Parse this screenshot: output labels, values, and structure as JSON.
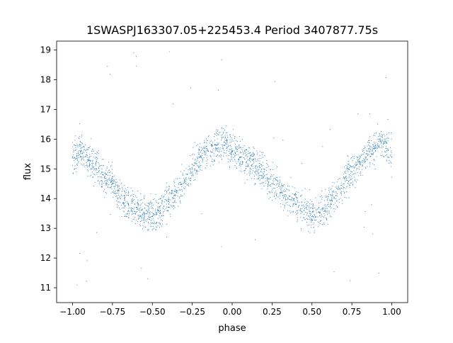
{
  "chart_data": {
    "type": "scatter",
    "title": "1SWASPJ163307.05+225453.4 Period 3407877.75s",
    "xlabel": "phase",
    "ylabel": "flux",
    "xlim": [
      -1.1,
      1.1
    ],
    "ylim": [
      10.5,
      19.3
    ],
    "xticks": [
      -1.0,
      -0.75,
      -0.5,
      -0.25,
      0.0,
      0.25,
      0.5,
      0.75,
      1.0
    ],
    "xtick_labels": [
      "−1.00",
      "−0.75",
      "−0.50",
      "−0.25",
      "0.00",
      "0.25",
      "0.50",
      "0.75",
      "1.00"
    ],
    "yticks": [
      11,
      12,
      13,
      14,
      15,
      16,
      17,
      18,
      19
    ],
    "ytick_labels": [
      "11",
      "12",
      "13",
      "14",
      "15",
      "16",
      "17",
      "18",
      "19"
    ],
    "grid": false,
    "legend": "none",
    "marker_color": "#1f77b4",
    "series": [
      {
        "x": [
          -1.0,
          -0.95,
          -0.9,
          -0.85,
          -0.8,
          -0.75,
          -0.7,
          -0.65,
          -0.6,
          -0.55,
          -0.5,
          -0.45,
          -0.4,
          -0.35,
          -0.3,
          -0.25,
          -0.2,
          -0.15,
          -0.1,
          -0.05,
          0.0,
          0.05,
          0.1,
          0.15,
          0.2,
          0.25,
          0.3,
          0.35,
          0.4,
          0.45,
          0.5,
          0.55,
          0.6,
          0.65,
          0.7,
          0.75,
          0.8,
          0.85,
          0.9,
          0.95,
          1.0
        ],
        "y": [
          15.4,
          15.6,
          15.3,
          15.0,
          14.7,
          14.5,
          14.0,
          13.8,
          13.7,
          13.5,
          13.4,
          13.6,
          13.9,
          14.2,
          14.6,
          15.0,
          15.4,
          15.6,
          15.8,
          15.9,
          15.6,
          15.4,
          15.3,
          15.1,
          14.9,
          14.5,
          14.2,
          14.0,
          13.8,
          13.6,
          13.4,
          13.5,
          13.8,
          14.1,
          14.5,
          14.9,
          15.2,
          15.5,
          15.8,
          15.9,
          15.4
        ]
      }
    ]
  }
}
